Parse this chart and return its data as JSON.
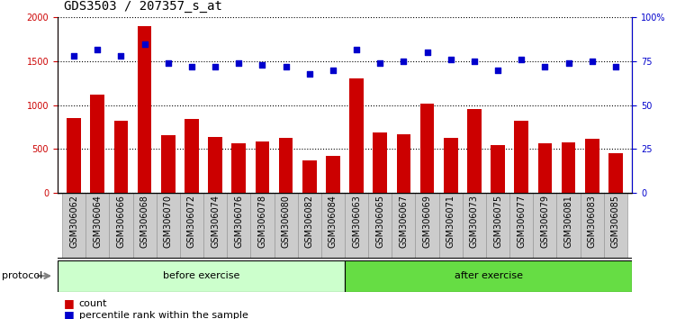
{
  "title": "GDS3503 / 207357_s_at",
  "categories": [
    "GSM306062",
    "GSM306064",
    "GSM306066",
    "GSM306068",
    "GSM306070",
    "GSM306072",
    "GSM306074",
    "GSM306076",
    "GSM306078",
    "GSM306080",
    "GSM306082",
    "GSM306084",
    "GSM306063",
    "GSM306065",
    "GSM306067",
    "GSM306069",
    "GSM306071",
    "GSM306073",
    "GSM306075",
    "GSM306077",
    "GSM306079",
    "GSM306081",
    "GSM306083",
    "GSM306085"
  ],
  "count_values": [
    850,
    1120,
    820,
    1900,
    660,
    840,
    635,
    570,
    590,
    625,
    375,
    420,
    1310,
    685,
    665,
    1020,
    630,
    955,
    545,
    825,
    565,
    580,
    615,
    450
  ],
  "percentile_values": [
    78,
    82,
    78,
    85,
    74,
    72,
    72,
    74,
    73,
    72,
    68,
    70,
    82,
    74,
    75,
    80,
    76,
    75,
    70,
    76,
    72,
    74,
    75,
    72
  ],
  "bar_color": "#cc0000",
  "scatter_color": "#0000cc",
  "ylim_left": [
    0,
    2000
  ],
  "ylim_right": [
    0,
    100
  ],
  "yticks_left": [
    0,
    500,
    1000,
    1500,
    2000
  ],
  "yticks_right": [
    0,
    25,
    50,
    75,
    100
  ],
  "ytick_labels_right": [
    "0",
    "25",
    "50",
    "75",
    "100%"
  ],
  "before_exercise_count": 12,
  "protocol_label": "protocol",
  "before_label": "before exercise",
  "after_label": "after exercise",
  "before_color": "#ccffcc",
  "after_color": "#66dd44",
  "legend_count_label": "count",
  "legend_pct_label": "percentile rank within the sample",
  "bg_color": "#ffffff",
  "plot_bg_color": "#ffffff",
  "title_fontsize": 10,
  "tick_fontsize": 7,
  "bar_width": 0.6,
  "xtick_bg_color": "#cccccc",
  "xtick_border_color": "#999999"
}
